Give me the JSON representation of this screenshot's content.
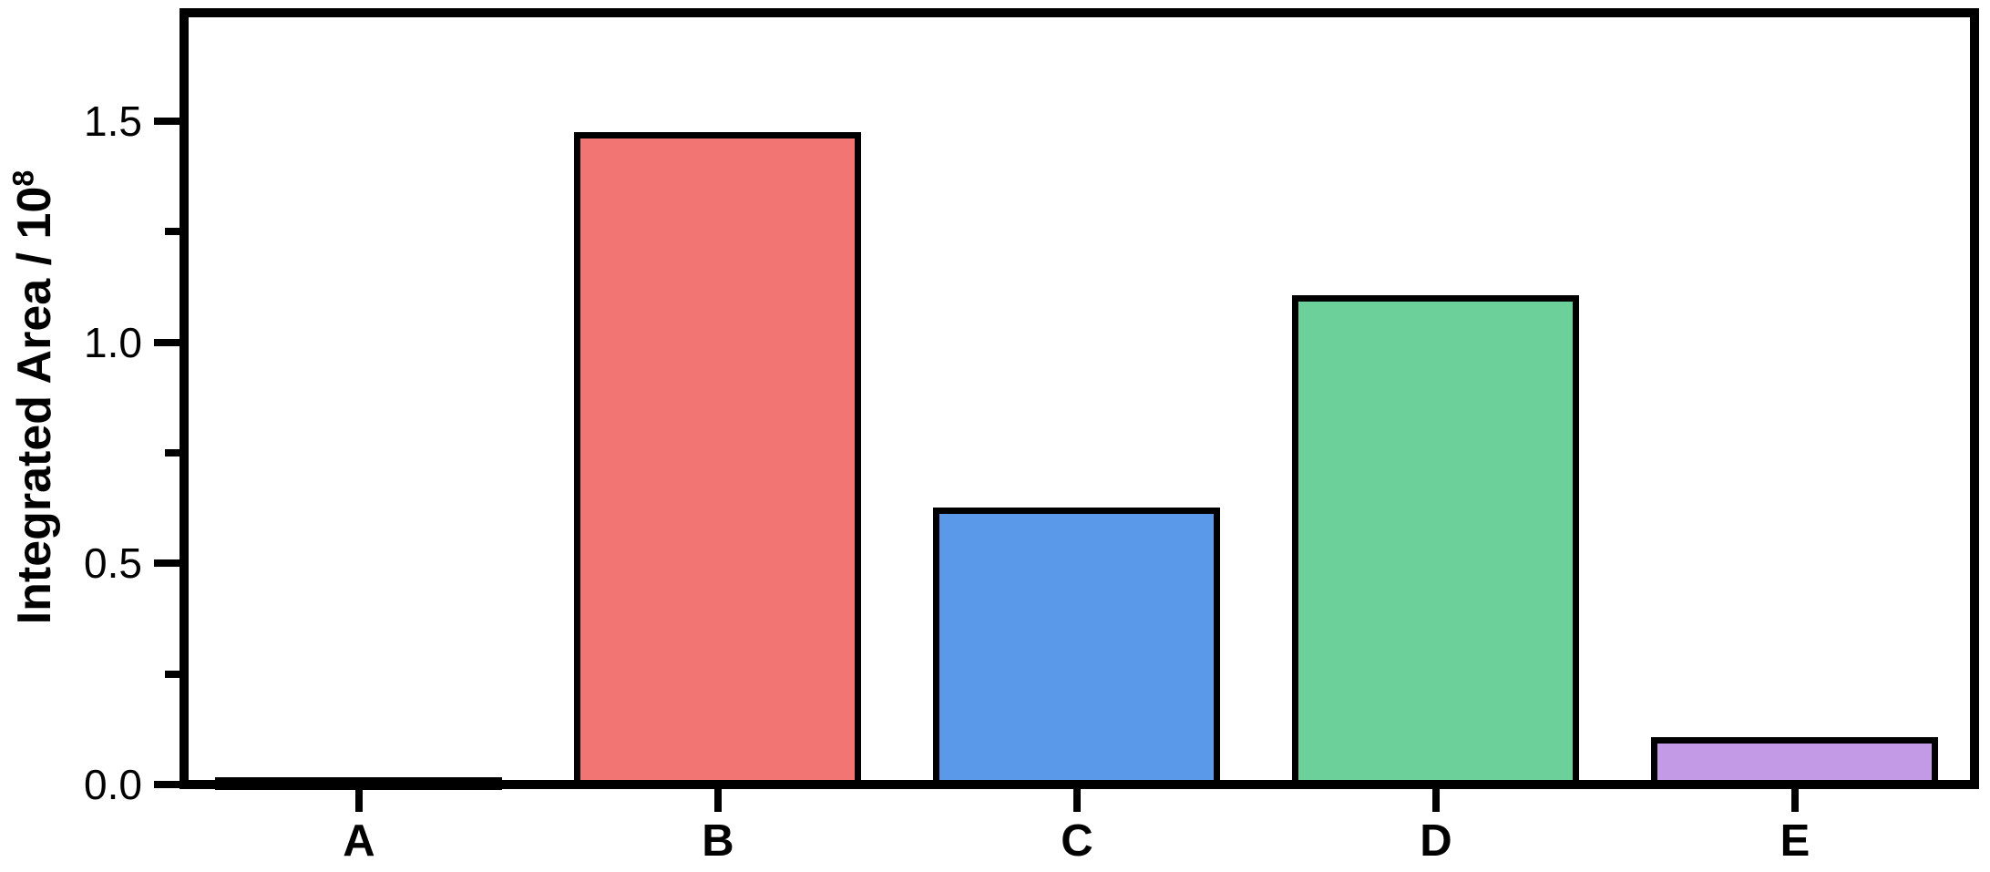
{
  "figure_background": "#FFFFFF",
  "chart_data": {
    "type": "bar",
    "title": "",
    "categories": [
      "A",
      "B",
      "C",
      "D",
      "E"
    ],
    "values": [
      0.01,
      1.47,
      0.62,
      1.1,
      0.1
    ],
    "series": [
      {
        "name": "Integrated Area",
        "values": [
          0.01,
          1.47,
          0.62,
          1.1,
          0.1
        ]
      }
    ],
    "bar_colors": [
      "#000000",
      "#F27573",
      "#5A98EA",
      "#6CD09A",
      "#C29AE6"
    ],
    "bar_outline_color": "#000000",
    "xlabel": "",
    "ylabel": "Integrated Area / 10^8",
    "ylabel_base": "Integrated Area / 10",
    "ylabel_exponent": "8",
    "ylim": [
      0,
      1.75
    ],
    "y_ticks": [
      {
        "value": 0.0,
        "label": "0.0"
      },
      {
        "value": 0.5,
        "label": "0.5"
      },
      {
        "value": 1.0,
        "label": "1.0"
      },
      {
        "value": 1.5,
        "label": "1.5"
      }
    ],
    "y_minor_ticks": [
      0.25,
      0.75,
      1.25
    ],
    "x_tick_positions": [
      "A",
      "B",
      "C",
      "D",
      "E"
    ],
    "grid": false,
    "legend": false,
    "frame": "full-box",
    "axis_color": "#000000",
    "tick_direction": "out"
  }
}
